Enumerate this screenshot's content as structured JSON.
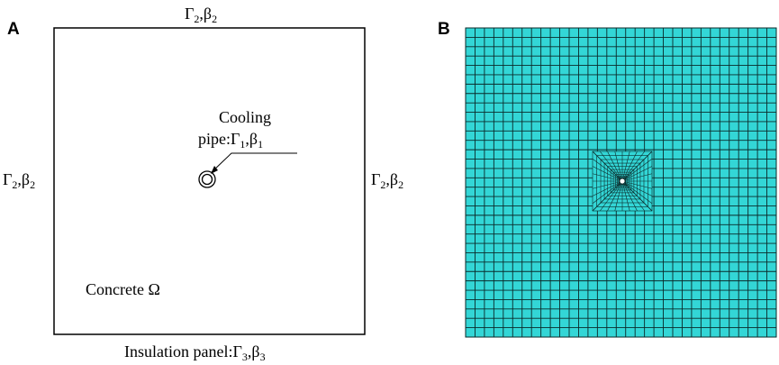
{
  "panel_a": {
    "label": "A",
    "boundary_top": {
      "main": "Γ",
      "main_sub": "2",
      "sep": ",β",
      "sep_sub": "2"
    },
    "boundary_left": {
      "main": "Γ",
      "main_sub": "2",
      "sep": ",β",
      "sep_sub": "2"
    },
    "boundary_right": {
      "main": "Γ",
      "main_sub": "2",
      "sep": ",β",
      "sep_sub": "2"
    },
    "boundary_bottom": {
      "prefix": "Insulation panel:Γ",
      "main_sub": "3",
      "sep": ",β",
      "sep_sub": "3"
    },
    "pipe_label_line1": "Cooling",
    "pipe_label_line2": {
      "prefix": "pipe:Γ",
      "main_sub": "1",
      "sep": ",β",
      "sep_sub": "1"
    },
    "domain_label": "Concrete Ω"
  },
  "panel_b": {
    "label": "B",
    "mesh_fill_color": "#33d6d6",
    "mesh_line_color": "#0b2a2a"
  }
}
